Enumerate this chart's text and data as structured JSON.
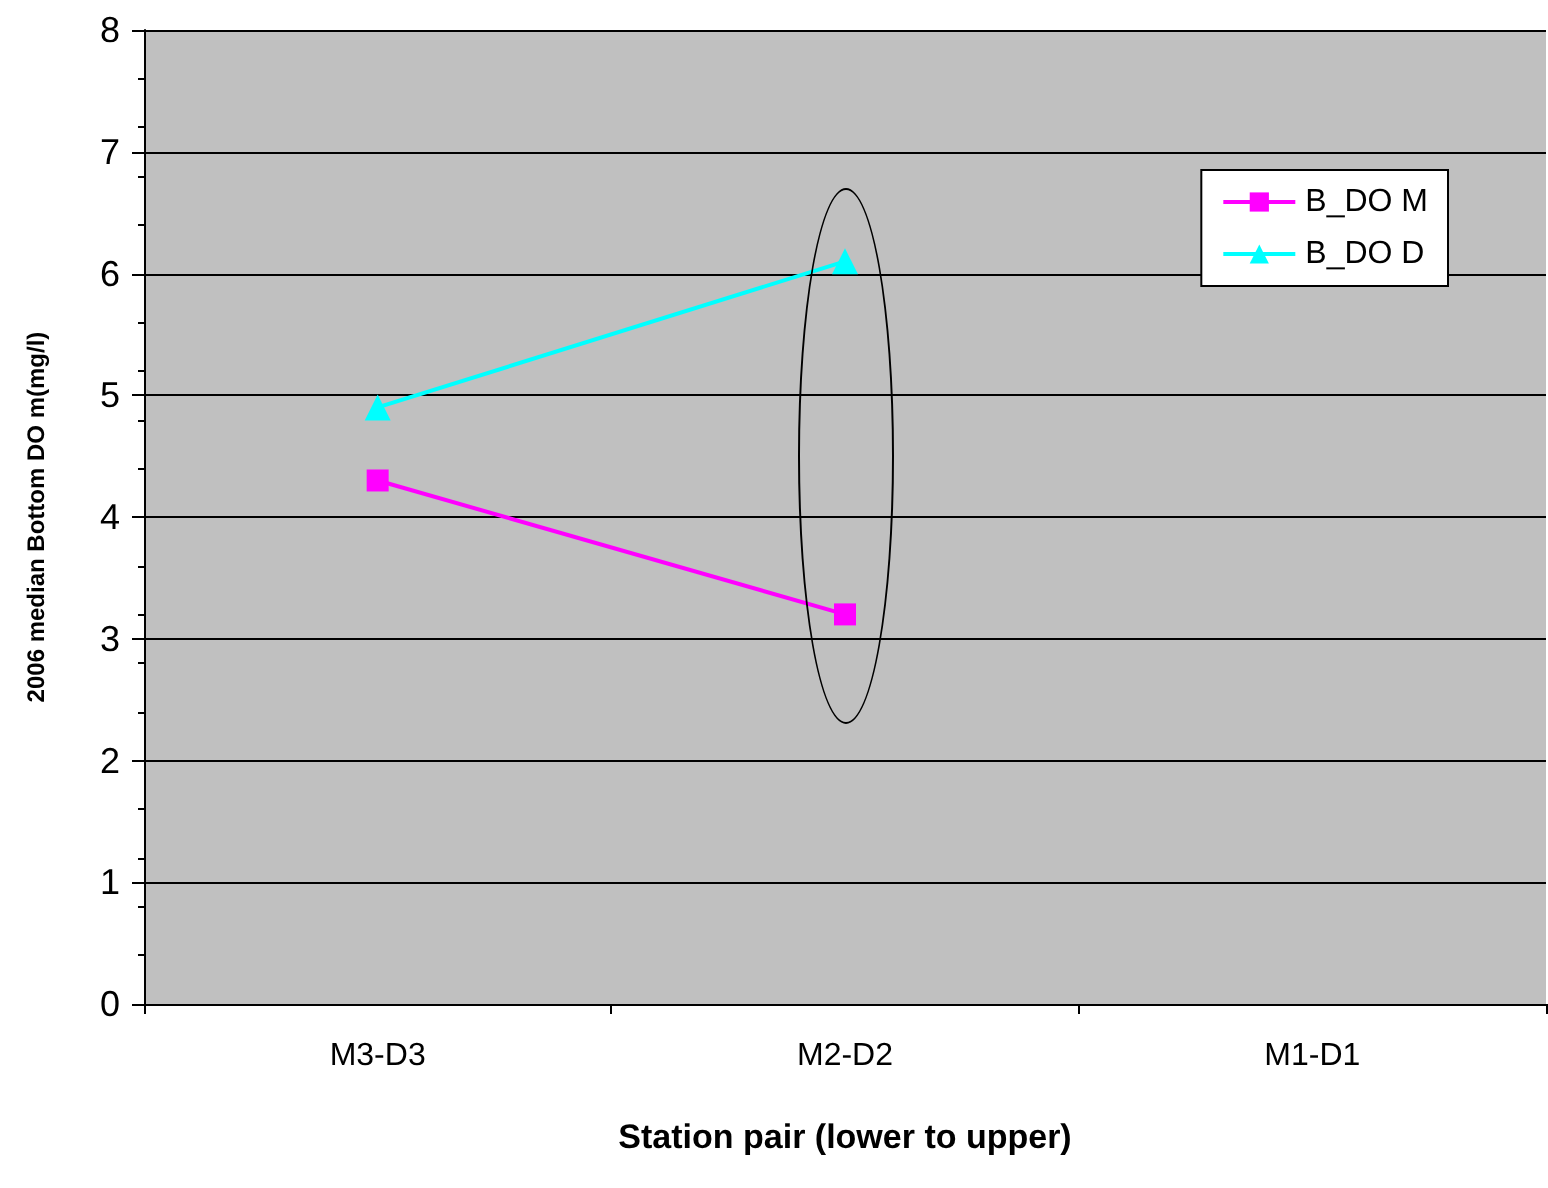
{
  "chart_data": {
    "type": "line",
    "xlabel": "Station pair (lower to upper)",
    "ylabel": "2006 median Bottom DO m(mg/l)",
    "categories": [
      "M3-D3",
      "M2-D2",
      "M1-D1"
    ],
    "series": [
      {
        "name": "B_DO M",
        "color": "#ff00ff",
        "marker": "square",
        "values": [
          4.3,
          3.2,
          null
        ]
      },
      {
        "name": "B_DO D",
        "color": "#00ffff",
        "marker": "triangle",
        "values": [
          4.9,
          6.1,
          null
        ]
      }
    ],
    "ylim": [
      0,
      8
    ],
    "yticks": [
      0,
      1,
      2,
      3,
      4,
      5,
      6,
      7,
      8
    ],
    "grid": "y",
    "legend": "right",
    "line_style": "solid"
  }
}
